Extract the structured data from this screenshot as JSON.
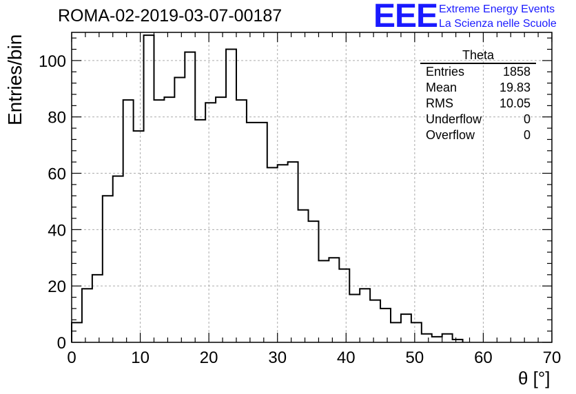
{
  "chart_data": {
    "type": "histogram",
    "title": "ROMA-02-2019-03-07-00187",
    "xlabel": "θ [°]",
    "ylabel": "Entries/bin",
    "xlim": [
      0,
      70
    ],
    "ylim": [
      0,
      110
    ],
    "xticks": [
      0,
      10,
      20,
      30,
      40,
      50,
      60,
      70
    ],
    "yticks": [
      0,
      20,
      40,
      60,
      80,
      100
    ],
    "grid": true,
    "bin_width": 1.5,
    "bin_start": 0,
    "values": [
      7,
      19,
      24,
      52,
      59,
      86,
      75,
      109,
      86,
      87,
      94,
      103,
      79,
      85,
      87,
      104,
      86,
      78,
      78,
      62,
      63,
      64,
      47,
      43,
      29,
      30,
      26,
      17,
      19,
      15,
      12,
      7,
      10,
      7,
      3,
      2,
      3,
      1
    ],
    "stats": {
      "name": "Theta",
      "rows": [
        {
          "label": "Entries",
          "value": "1858"
        },
        {
          "label": "Mean",
          "value": "19.83"
        },
        {
          "label": "RMS",
          "value": "10.05"
        },
        {
          "label": "Underflow",
          "value": "0"
        },
        {
          "label": "Overflow",
          "value": "0"
        }
      ]
    }
  },
  "logo": {
    "letters": "EEE",
    "line1": "Extreme Energy Events",
    "line2": "La Scienza nelle Scuole"
  },
  "colors": {
    "line": "#000000",
    "grid": "#aaaaaa",
    "logo": "#1a1aff"
  }
}
